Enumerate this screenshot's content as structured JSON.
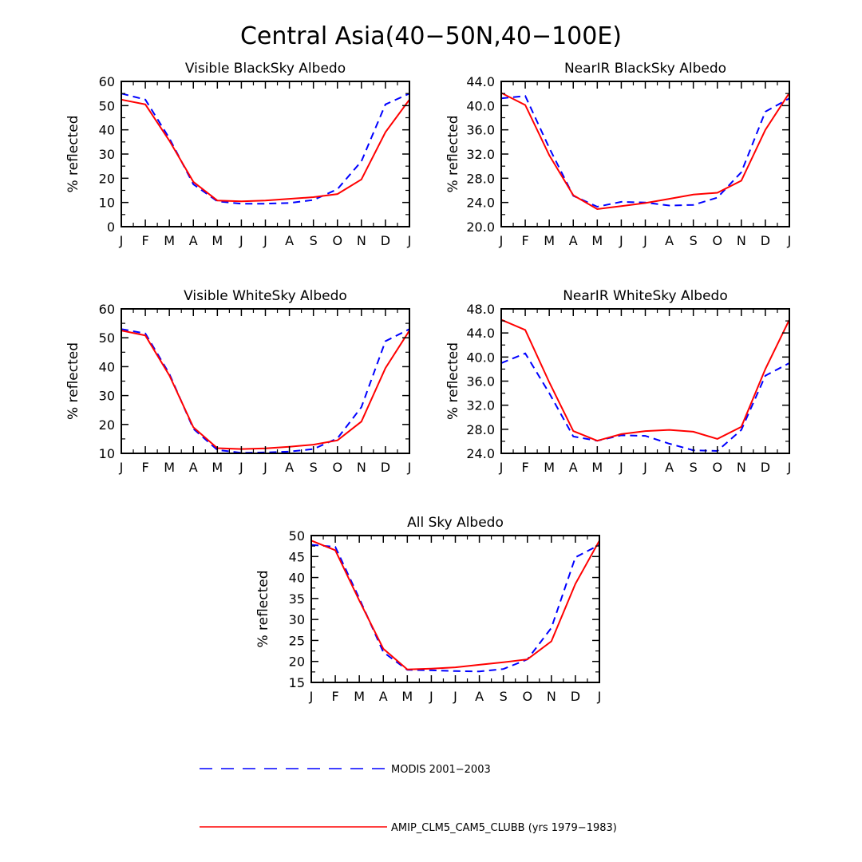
{
  "figure": {
    "title": "Central Asia(40−50N,40−100E)"
  },
  "colors": {
    "modis": "#0000ff",
    "model": "#ff0000",
    "axis": "#000000"
  },
  "legend": {
    "modis_label": "MODIS 2001−2003",
    "model_label": "AMIP_CLM5_CAM5_CLUBB (yrs 1979−1983)"
  },
  "chart_data": [
    {
      "id": "vis-black",
      "type": "line",
      "title": "Visible BlackSky Albedo",
      "ylabel": "% reflected",
      "categories": [
        "J",
        "F",
        "M",
        "A",
        "M",
        "J",
        "J",
        "A",
        "S",
        "O",
        "N",
        "D",
        "J"
      ],
      "ylim": [
        0,
        60
      ],
      "yticks": [
        "0",
        "10",
        "20",
        "30",
        "40",
        "50",
        "60"
      ],
      "series": [
        {
          "name": "MODIS 2001−2003",
          "style": "dashed",
          "values": [
            55,
            52.5,
            36.5,
            17.5,
            10.5,
            9.5,
            9.5,
            9.8,
            11,
            15.5,
            27,
            50.5,
            55
          ]
        },
        {
          "name": "AMIP_CLM5_CAM5_CLUBB (yrs 1979−1983)",
          "style": "solid",
          "values": [
            52.5,
            50.5,
            35.5,
            18.5,
            10.8,
            10.5,
            10.8,
            11.5,
            12.2,
            13.5,
            19.5,
            39,
            52.5
          ]
        }
      ]
    },
    {
      "id": "nir-black",
      "type": "line",
      "title": "NearIR BlackSky Albedo",
      "ylabel": "% reflected",
      "categories": [
        "J",
        "F",
        "M",
        "A",
        "M",
        "J",
        "J",
        "A",
        "S",
        "O",
        "N",
        "D",
        "J"
      ],
      "ylim": [
        20,
        44
      ],
      "yticks": [
        "20.0",
        "24.0",
        "28.0",
        "32.0",
        "36.0",
        "40.0",
        "44.0"
      ],
      "series": [
        {
          "name": "MODIS 2001−2003",
          "style": "dashed",
          "values": [
            41.2,
            41.6,
            33,
            25.1,
            23.3,
            24.1,
            24,
            23.5,
            23.6,
            24.8,
            29,
            39,
            41.2
          ]
        },
        {
          "name": "AMIP_CLM5_CAM5_CLUBB (yrs 1979−1983)",
          "style": "solid",
          "values": [
            42.1,
            40.1,
            31.8,
            25.2,
            22.9,
            23.4,
            23.9,
            24.6,
            25.3,
            25.6,
            27.6,
            36,
            42.1
          ]
        }
      ]
    },
    {
      "id": "vis-white",
      "type": "line",
      "title": "Visible WhiteSky Albedo",
      "ylabel": "% reflected",
      "categories": [
        "J",
        "F",
        "M",
        "A",
        "M",
        "J",
        "J",
        "A",
        "S",
        "O",
        "N",
        "D",
        "J"
      ],
      "ylim": [
        10,
        60
      ],
      "yticks": [
        "10",
        "20",
        "30",
        "40",
        "50",
        "60"
      ],
      "series": [
        {
          "name": "MODIS 2001−2003",
          "style": "dashed",
          "values": [
            53,
            51.5,
            37.5,
            18.5,
            11.2,
            10.2,
            10.3,
            10.6,
            11.5,
            15.2,
            26,
            48.8,
            53
          ]
        },
        {
          "name": "AMIP_CLM5_CAM5_CLUBB (yrs 1979−1983)",
          "style": "solid",
          "values": [
            52.5,
            50.8,
            37,
            19,
            11.8,
            11.5,
            11.7,
            12.3,
            13,
            14.5,
            21,
            39.5,
            52.5
          ]
        }
      ]
    },
    {
      "id": "nir-white",
      "type": "line",
      "title": "NearIR WhiteSky Albedo",
      "ylabel": "% reflected",
      "categories": [
        "J",
        "F",
        "M",
        "A",
        "M",
        "J",
        "J",
        "A",
        "S",
        "O",
        "N",
        "D",
        "J"
      ],
      "ylim": [
        24,
        48
      ],
      "yticks": [
        "24.0",
        "28.0",
        "32.0",
        "36.0",
        "40.0",
        "44.0",
        "48.0"
      ],
      "series": [
        {
          "name": "MODIS 2001−2003",
          "style": "dashed",
          "values": [
            39,
            40.6,
            34,
            26.8,
            26.1,
            27,
            26.9,
            25.6,
            24.5,
            24.4,
            27.9,
            36.9,
            39
          ]
        },
        {
          "name": "AMIP_CLM5_CAM5_CLUBB (yrs 1979−1983)",
          "style": "solid",
          "values": [
            46.2,
            44.5,
            35.8,
            27.7,
            26.1,
            27.2,
            27.7,
            27.9,
            27.6,
            26.4,
            28.4,
            38,
            46.2
          ]
        }
      ]
    },
    {
      "id": "all-sky",
      "type": "line",
      "title": "All Sky Albedo",
      "ylabel": "% reflected",
      "categories": [
        "J",
        "F",
        "M",
        "A",
        "M",
        "J",
        "J",
        "A",
        "S",
        "O",
        "N",
        "D",
        "J"
      ],
      "ylim": [
        15,
        50
      ],
      "yticks": [
        "15",
        "20",
        "25",
        "30",
        "35",
        "40",
        "45",
        "50"
      ],
      "series": [
        {
          "name": "MODIS 2001−2003",
          "style": "dashed",
          "values": [
            47.8,
            47.3,
            35,
            22.2,
            18,
            17.9,
            17.7,
            17.6,
            18.2,
            20.5,
            28,
            44.8,
            47.8
          ]
        },
        {
          "name": "AMIP_CLM5_CAM5_CLUBB (yrs 1979−1983)",
          "style": "solid",
          "values": [
            48.8,
            46.5,
            34.5,
            23,
            18.1,
            18.3,
            18.6,
            19.2,
            19.8,
            20.5,
            24.8,
            38.5,
            48.8
          ]
        }
      ]
    }
  ]
}
